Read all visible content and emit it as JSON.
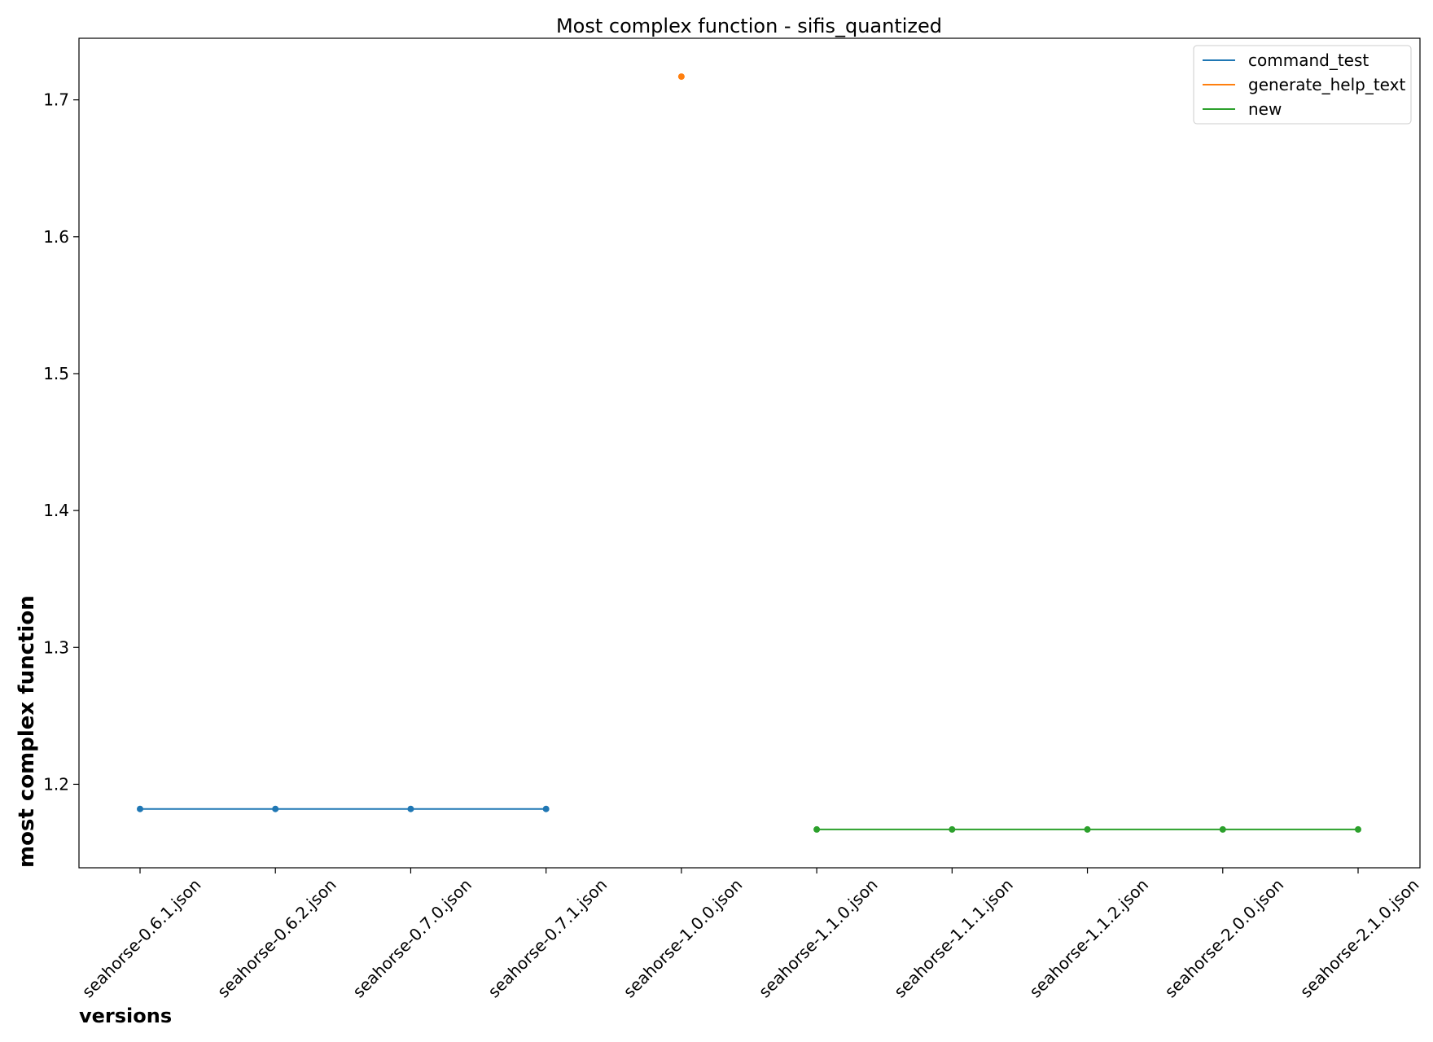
{
  "chart_data": {
    "type": "line",
    "title": "Most complex function - sifis_quantized",
    "xlabel": "versions",
    "ylabel": "most complex function",
    "categories": [
      "seahorse-0.6.1.json",
      "seahorse-0.6.2.json",
      "seahorse-0.7.0.json",
      "seahorse-0.7.1.json",
      "seahorse-1.0.0.json",
      "seahorse-1.1.0.json",
      "seahorse-1.1.1.json",
      "seahorse-1.1.2.json",
      "seahorse-2.0.0.json",
      "seahorse-2.1.0.json"
    ],
    "ylim": [
      1.139,
      1.745
    ],
    "yticks": [
      "1.2",
      "1.3",
      "1.4",
      "1.5",
      "1.6",
      "1.7"
    ],
    "grid": false,
    "legend_position": "top-right",
    "series": [
      {
        "name": "command_test",
        "color": "#1f77b4",
        "values": [
          1.182,
          1.182,
          1.182,
          1.182,
          null,
          null,
          null,
          null,
          null,
          null
        ]
      },
      {
        "name": "generate_help_text",
        "color": "#ff7f0e",
        "values": [
          null,
          null,
          null,
          null,
          1.717,
          null,
          null,
          null,
          null,
          null
        ]
      },
      {
        "name": "new",
        "color": "#2ca02c",
        "values": [
          null,
          null,
          null,
          null,
          null,
          1.167,
          1.167,
          1.167,
          1.167,
          1.167
        ]
      }
    ]
  }
}
